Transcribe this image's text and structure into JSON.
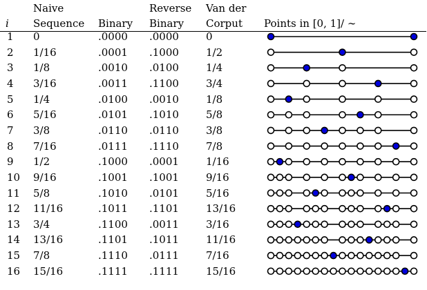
{
  "headers": {
    "i": "i",
    "naive_line1": "Naive",
    "naive_line2": "Sequence",
    "binary": "Binary",
    "reverse_line1": "Reverse",
    "reverse_line2": "Binary",
    "vdc_line1": "Van der",
    "vdc_line2": "Corput",
    "points": "Points in [0, 1]/ ∼"
  },
  "rows": [
    {
      "i": "1",
      "naive": "0",
      "binary": ".0000",
      "reverse": ".0000",
      "vdc": "0"
    },
    {
      "i": "2",
      "naive": "1/16",
      "binary": ".0001",
      "reverse": ".1000",
      "vdc": "1/2"
    },
    {
      "i": "3",
      "naive": "1/8",
      "binary": ".0010",
      "reverse": ".0100",
      "vdc": "1/4"
    },
    {
      "i": "4",
      "naive": "3/16",
      "binary": ".0011",
      "reverse": ".1100",
      "vdc": "3/4"
    },
    {
      "i": "5",
      "naive": "1/4",
      "binary": ".0100",
      "reverse": ".0010",
      "vdc": "1/8"
    },
    {
      "i": "6",
      "naive": "5/16",
      "binary": ".0101",
      "reverse": ".1010",
      "vdc": "5/8"
    },
    {
      "i": "7",
      "naive": "3/8",
      "binary": ".0110",
      "reverse": ".0110",
      "vdc": "3/8"
    },
    {
      "i": "8",
      "naive": "7/16",
      "binary": ".0111",
      "reverse": ".1110",
      "vdc": "7/8"
    },
    {
      "i": "9",
      "naive": "1/2",
      "binary": ".1000",
      "reverse": ".0001",
      "vdc": "1/16"
    },
    {
      "i": "10",
      "naive": "9/16",
      "binary": ".1001",
      "reverse": ".1001",
      "vdc": "9/16"
    },
    {
      "i": "11",
      "naive": "5/8",
      "binary": ".1010",
      "reverse": ".0101",
      "vdc": "5/16"
    },
    {
      "i": "12",
      "naive": "11/16",
      "binary": ".1011",
      "reverse": ".1101",
      "vdc": "13/16"
    },
    {
      "i": "13",
      "naive": "3/4",
      "binary": ".1100",
      "reverse": ".0011",
      "vdc": "3/16"
    },
    {
      "i": "14",
      "naive": "13/16",
      "binary": ".1101",
      "reverse": ".1011",
      "vdc": "11/16"
    },
    {
      "i": "15",
      "naive": "7/8",
      "binary": ".1110",
      "reverse": ".0111",
      "vdc": "7/16"
    },
    {
      "i": "16",
      "naive": "15/16",
      "binary": ".1111",
      "reverse": ".1111",
      "vdc": "15/16"
    }
  ],
  "colors": {
    "new_point_fill": "#0000dd",
    "old_point_fill": "#ffffff",
    "stroke": "#000000"
  }
}
